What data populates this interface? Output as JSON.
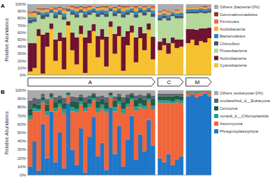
{
  "chart_data": [
    {
      "type": "bar",
      "title": "A",
      "y_label": "Relative Abundance",
      "stacked": true,
      "grid": false,
      "legend": "right",
      "tick_labels": "y",
      "categories": [
        null,
        null,
        null,
        null,
        null,
        null,
        null,
        null,
        null,
        null,
        null,
        null,
        null,
        null,
        null,
        null,
        null,
        null,
        null,
        null,
        null,
        null,
        null,
        null,
        null,
        null,
        null,
        null,
        null,
        null,
        null,
        null,
        null,
        null,
        null,
        null,
        null,
        null,
        null,
        null,
        null,
        null
      ],
      "ylim": [
        0,
        100
      ],
      "yticks": [
        {
          "value": 0,
          "label": "0%"
        },
        {
          "value": 10,
          "label": "10%"
        },
        {
          "value": 20,
          "label": "20%"
        },
        {
          "value": 30,
          "label": "30%"
        },
        {
          "value": 40,
          "label": "40%"
        },
        {
          "value": 50,
          "label": "50%"
        },
        {
          "value": 60,
          "label": "60%"
        },
        {
          "value": 70,
          "label": "70%"
        },
        {
          "value": 80,
          "label": "80%"
        },
        {
          "value": 90,
          "label": "90%"
        },
        {
          "value": 100,
          "label": "100%"
        }
      ],
      "annotations": [
        {
          "text": "A",
          "start": 0,
          "end": 29
        },
        {
          "text": "C",
          "start": 30,
          "end": 35
        },
        {
          "text": "M",
          "start": 36,
          "end": 41
        }
      ],
      "series": [
        {
          "name": "Cyanobacteria",
          "color": "#f5c12e",
          "values": [
            5,
            10,
            55,
            2,
            40,
            65,
            20,
            48,
            8,
            70,
            35,
            15,
            58,
            3,
            45,
            62,
            25,
            50,
            12,
            68,
            30,
            55,
            6,
            42,
            60,
            18,
            52,
            35,
            64,
            22,
            35,
            42,
            30,
            45,
            38,
            40,
            45,
            50,
            42,
            48,
            46,
            52
          ]
        },
        {
          "name": "Actinobacteria",
          "color": "#6e1431",
          "values": [
            40,
            35,
            10,
            55,
            20,
            8,
            30,
            12,
            45,
            6,
            25,
            38,
            12,
            50,
            18,
            10,
            30,
            15,
            42,
            8,
            28,
            14,
            48,
            20,
            10,
            35,
            16,
            24,
            9,
            32,
            12,
            10,
            15,
            8,
            12,
            10,
            20,
            15,
            22,
            18,
            20,
            15
          ]
        },
        {
          "name": "Proteobacteria",
          "color": "#b5d89b",
          "values": [
            28,
            30,
            20,
            22,
            22,
            15,
            30,
            25,
            25,
            14,
            25,
            28,
            18,
            28,
            22,
            16,
            27,
            20,
            28,
            14,
            25,
            18,
            27,
            23,
            18,
            28,
            20,
            25,
            16,
            28,
            30,
            28,
            32,
            30,
            30,
            30,
            22,
            22,
            23,
            22,
            21,
            21
          ]
        },
        {
          "name": "Chloroflexi",
          "color": "#46546e",
          "values": [
            5,
            4,
            3,
            6,
            4,
            3,
            5,
            4,
            5,
            2,
            4,
            5,
            3,
            5,
            4,
            3,
            5,
            4,
            5,
            3,
            5,
            4,
            5,
            4,
            3,
            5,
            4,
            5,
            3,
            5,
            4,
            4,
            4,
            3,
            4,
            4,
            3,
            3,
            3,
            3,
            3,
            3
          ]
        },
        {
          "name": "Bacteroidetes",
          "color": "#2a8bc2",
          "values": [
            4,
            3,
            2,
            3,
            3,
            2,
            4,
            3,
            4,
            2,
            3,
            4,
            2,
            4,
            3,
            3,
            4,
            3,
            4,
            2,
            3,
            3,
            4,
            3,
            3,
            4,
            3,
            3,
            3,
            4,
            4,
            3,
            4,
            3,
            3,
            4,
            3,
            3,
            3,
            3,
            3,
            3
          ]
        },
        {
          "name": "Acidobacteria",
          "color": "#f2a93b",
          "values": [
            4,
            5,
            2,
            3,
            3,
            2,
            3,
            2,
            4,
            2,
            3,
            3,
            2,
            3,
            3,
            2,
            3,
            3,
            3,
            2,
            3,
            2,
            4,
            3,
            2,
            4,
            2,
            3,
            2,
            3,
            3,
            3,
            3,
            2,
            3,
            3,
            2,
            2,
            2,
            2,
            2,
            2
          ]
        },
        {
          "name": "Firmicutes",
          "color": "#ef6a4c",
          "values": [
            2,
            1,
            1,
            2,
            1,
            1,
            2,
            1,
            2,
            1,
            1,
            2,
            1,
            2,
            1,
            1,
            1,
            1,
            2,
            1,
            1,
            1,
            2,
            1,
            1,
            2,
            1,
            1,
            1,
            2,
            1,
            1,
            1,
            1,
            1,
            1,
            1,
            1,
            1,
            1,
            1,
            1
          ]
        },
        {
          "name": "Gemmatimonadetes",
          "color": "#8c3a24",
          "values": [
            1,
            2,
            1,
            1,
            1,
            0,
            1,
            1,
            1,
            0,
            1,
            1,
            1,
            1,
            1,
            0,
            1,
            1,
            1,
            0,
            1,
            1,
            1,
            1,
            0,
            1,
            0,
            1,
            0,
            1,
            1,
            1,
            1,
            0,
            1,
            0,
            0,
            0,
            0,
            0,
            1,
            0
          ]
        },
        {
          "name": "Others (bacteria<2%)",
          "color": "#aaaaaa",
          "values": [
            11,
            10,
            6,
            6,
            6,
            4,
            5,
            4,
            6,
            3,
            3,
            4,
            3,
            4,
            3,
            3,
            4,
            3,
            3,
            2,
            4,
            2,
            3,
            3,
            3,
            3,
            2,
            3,
            2,
            3,
            10,
            8,
            10,
            8,
            8,
            8,
            4,
            4,
            4,
            3,
            3,
            3
          ]
        }
      ]
    },
    {
      "type": "bar",
      "title": "B",
      "y_label": "Relative Abundance",
      "stacked": true,
      "grid": false,
      "legend": "right",
      "tick_labels": "y",
      "categories": [
        null,
        null,
        null,
        null,
        null,
        null,
        null,
        null,
        null,
        null,
        null,
        null,
        null,
        null,
        null,
        null,
        null,
        null,
        null,
        null,
        null,
        null,
        null,
        null,
        null,
        null,
        null,
        null,
        null,
        null,
        null,
        null,
        null,
        null,
        null,
        null,
        null,
        null,
        null,
        null,
        null,
        null
      ],
      "ylim": [
        0,
        100
      ],
      "yticks": [
        {
          "value": 0,
          "label": "0%"
        },
        {
          "value": 10,
          "label": "10%"
        },
        {
          "value": 20,
          "label": "20%"
        },
        {
          "value": 30,
          "label": "30%"
        },
        {
          "value": 40,
          "label": "40%"
        },
        {
          "value": 50,
          "label": "50%"
        },
        {
          "value": 60,
          "label": "60%"
        },
        {
          "value": 70,
          "label": "70%"
        },
        {
          "value": 80,
          "label": "80%"
        },
        {
          "value": 90,
          "label": "90%"
        },
        {
          "value": 100,
          "label": "100%"
        }
      ],
      "series": [
        {
          "name": "Phragmoplastophyta",
          "color": "#1f77c9",
          "values": [
            10,
            40,
            5,
            60,
            20,
            75,
            15,
            50,
            8,
            85,
            30,
            12,
            55,
            3,
            45,
            68,
            22,
            38,
            6,
            80,
            25,
            58,
            10,
            42,
            70,
            18,
            48,
            28,
            65,
            35,
            20,
            15,
            25,
            12,
            18,
            22,
            93,
            95,
            92,
            94,
            96,
            93
          ]
        },
        {
          "name": "Ascomycota",
          "color": "#f0663a",
          "values": [
            55,
            35,
            70,
            25,
            50,
            15,
            60,
            30,
            65,
            8,
            45,
            62,
            28,
            72,
            35,
            20,
            52,
            40,
            68,
            12,
            50,
            25,
            63,
            38,
            18,
            58,
            32,
            50,
            22,
            42,
            65,
            70,
            60,
            72,
            68,
            62,
            3,
            2,
            4,
            3,
            2,
            3
          ]
        },
        {
          "name": "norank_k__Chloroplastida",
          "color": "#2a9d8f",
          "values": [
            5,
            4,
            3,
            3,
            5,
            2,
            4,
            4,
            5,
            2,
            5,
            4,
            4,
            4,
            4,
            3,
            5,
            5,
            4,
            2,
            5,
            4,
            5,
            4,
            3,
            5,
            4,
            4,
            3,
            5,
            3,
            3,
            3,
            3,
            3,
            4,
            1,
            1,
            1,
            1,
            0,
            1
          ]
        },
        {
          "name": "Cercozoa",
          "color": "#1e5c45",
          "values": [
            8,
            6,
            5,
            4,
            8,
            3,
            7,
            6,
            7,
            2,
            7,
            8,
            5,
            7,
            6,
            4,
            8,
            7,
            8,
            3,
            8,
            6,
            8,
            7,
            4,
            8,
            7,
            7,
            5,
            8,
            5,
            5,
            5,
            6,
            5,
            5,
            1,
            1,
            1,
            1,
            1,
            1
          ]
        },
        {
          "name": "unclassified_d__Eukaryota",
          "color": "#5d6670",
          "values": [
            10,
            6,
            7,
            4,
            7,
            2,
            6,
            4,
            6,
            1,
            6,
            6,
            3,
            6,
            4,
            2,
            6,
            4,
            6,
            1,
            5,
            3,
            6,
            4,
            2,
            5,
            4,
            5,
            2,
            4,
            3,
            3,
            3,
            3,
            2,
            3,
            1,
            0,
            1,
            0,
            0,
            1
          ]
        },
        {
          "name": "Others (eukaryota<2%)",
          "color": "#aaaaaa",
          "values": [
            12,
            9,
            10,
            4,
            10,
            3,
            8,
            6,
            9,
            2,
            7,
            8,
            5,
            8,
            6,
            3,
            7,
            6,
            8,
            2,
            7,
            4,
            8,
            5,
            3,
            6,
            5,
            6,
            3,
            6,
            4,
            4,
            4,
            4,
            4,
            4,
            1,
            1,
            1,
            1,
            1,
            1
          ]
        }
      ]
    }
  ]
}
